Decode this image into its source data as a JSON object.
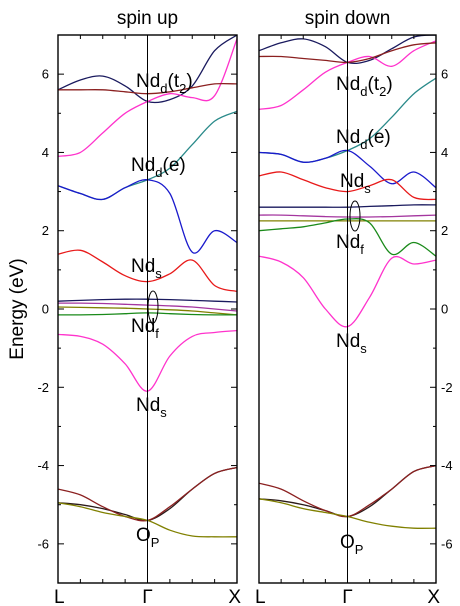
{
  "chart_data": [
    {
      "type": "line",
      "title": "spin up",
      "xlabel": "",
      "ylabel": "Energy (eV)",
      "ylim": [
        -7,
        7
      ],
      "yticks": [
        -6,
        -4,
        -2,
        0,
        2,
        4,
        6
      ],
      "xticks": [
        "L",
        "Γ",
        "X"
      ],
      "x": [
        0,
        0.125,
        0.25,
        0.375,
        0.5,
        0.625,
        0.75,
        0.875,
        1
      ],
      "series": [
        {
          "color": "#1a1a5e",
          "values": [
            5.6,
            5.85,
            5.95,
            5.7,
            5.3,
            5.35,
            5.7,
            6.6,
            7.0
          ]
        },
        {
          "color": "#ff33cc",
          "values": [
            3.9,
            4.0,
            4.5,
            5.0,
            5.3,
            5.5,
            5.4,
            5.45,
            6.9
          ]
        },
        {
          "color": "#8b2020",
          "values": [
            5.6,
            5.6,
            5.6,
            5.55,
            5.5,
            5.55,
            5.65,
            5.75,
            5.75
          ]
        },
        {
          "color": "#2a8a8a",
          "values": [
            3.15,
            2.95,
            2.8,
            3.1,
            3.3,
            3.6,
            4.2,
            4.8,
            5.05
          ]
        },
        {
          "color": "#1a1acc",
          "values": [
            3.15,
            2.95,
            2.8,
            3.1,
            3.3,
            2.95,
            1.45,
            2.0,
            1.7
          ]
        },
        {
          "color": "#e81a1a",
          "values": [
            1.4,
            1.5,
            1.2,
            0.85,
            0.7,
            0.9,
            1.25,
            0.6,
            0.45
          ]
        },
        {
          "color": "#1a1a5e",
          "values": [
            0.2,
            0.22,
            0.24,
            0.25,
            0.25,
            0.24,
            0.22,
            0.2,
            0.18
          ]
        },
        {
          "color": "#a4369f",
          "values": [
            0.15,
            0.15,
            0.14,
            0.12,
            0.1,
            0.08,
            0.05,
            0.0,
            -0.05
          ]
        },
        {
          "color": "#808000",
          "values": [
            0.05,
            0.04,
            0.03,
            0.02,
            0.0,
            -0.02,
            -0.05,
            -0.1,
            -0.15
          ]
        },
        {
          "color": "#1a8a1a",
          "values": [
            -0.15,
            -0.15,
            -0.14,
            -0.12,
            -0.1,
            -0.12,
            -0.14,
            -0.15,
            -0.15
          ]
        },
        {
          "color": "#ff33cc",
          "values": [
            -0.65,
            -0.7,
            -0.9,
            -1.4,
            -2.1,
            -1.2,
            -0.7,
            -0.6,
            -0.55
          ]
        },
        {
          "color": "#2b1a1a",
          "values": [
            -4.95,
            -5.0,
            -5.1,
            -5.25,
            -5.4,
            -5.1,
            -4.6,
            -4.2,
            -4.05
          ]
        },
        {
          "color": "#8b2020",
          "values": [
            -4.6,
            -4.75,
            -5.05,
            -5.3,
            -5.4,
            -5.05,
            -4.6,
            -4.2,
            -4.05
          ]
        },
        {
          "color": "#808000",
          "values": [
            -4.95,
            -5.05,
            -5.2,
            -5.3,
            -5.4,
            -5.65,
            -5.8,
            -5.82,
            -5.82
          ]
        }
      ],
      "annotations": [
        {
          "main": "Nd",
          "sub": "d",
          "after": "(t",
          "sub2": "2",
          "tail": ")"
        },
        {
          "main": "Nd",
          "sub": "d",
          "after": "(e)"
        },
        {
          "main": "Nd",
          "sub": "s"
        },
        {
          "main": "Nd",
          "sub": "f"
        },
        {
          "main": "Nd",
          "sub": "s"
        },
        {
          "main": "O",
          "sub": "P"
        }
      ]
    },
    {
      "type": "line",
      "title": "spin down",
      "xlabel": "",
      "ylabel": "",
      "ylim": [
        -7,
        7
      ],
      "yticks": [
        -6,
        -4,
        -2,
        0,
        2,
        4,
        6
      ],
      "xticks": [
        "L",
        "Γ",
        "X"
      ],
      "x": [
        0,
        0.125,
        0.25,
        0.375,
        0.5,
        0.625,
        0.75,
        0.875,
        1
      ],
      "series": [
        {
          "color": "#1a1a5e",
          "values": [
            6.6,
            6.8,
            6.9,
            6.7,
            6.3,
            6.35,
            6.65,
            6.95,
            7.0
          ]
        },
        {
          "color": "#ff33cc",
          "values": [
            5.1,
            5.2,
            5.6,
            6.05,
            6.3,
            6.45,
            6.2,
            6.6,
            6.85
          ]
        },
        {
          "color": "#8b2020",
          "values": [
            6.45,
            6.45,
            6.4,
            6.35,
            6.3,
            6.4,
            6.6,
            6.75,
            6.8
          ]
        },
        {
          "color": "#2a8a8a",
          "values": [
            4.0,
            3.95,
            3.75,
            3.85,
            4.05,
            4.35,
            4.9,
            5.5,
            5.9
          ]
        },
        {
          "color": "#1a1acc",
          "values": [
            4.0,
            3.95,
            3.75,
            3.85,
            4.05,
            3.65,
            3.2,
            3.5,
            3.1
          ]
        },
        {
          "color": "#e81a1a",
          "values": [
            3.4,
            3.5,
            3.3,
            3.1,
            3.0,
            3.15,
            3.3,
            2.85,
            2.8
          ]
        },
        {
          "color": "#1a1a5e",
          "values": [
            2.6,
            2.6,
            2.6,
            2.6,
            2.6,
            2.62,
            2.64,
            2.66,
            2.66
          ]
        },
        {
          "color": "#a4369f",
          "values": [
            2.4,
            2.4,
            2.38,
            2.36,
            2.35,
            2.35,
            2.36,
            2.38,
            2.4
          ]
        },
        {
          "color": "#808000",
          "values": [
            2.25,
            2.25,
            2.25,
            2.25,
            2.25,
            2.25,
            2.25,
            2.25,
            2.25
          ]
        },
        {
          "color": "#1a8a1a",
          "values": [
            2.0,
            2.05,
            2.1,
            2.2,
            2.3,
            2.2,
            1.4,
            1.7,
            1.35
          ]
        },
        {
          "color": "#ff33cc",
          "values": [
            1.35,
            1.2,
            0.8,
            0.0,
            -0.45,
            0.3,
            1.3,
            1.15,
            1.25
          ]
        },
        {
          "color": "#2b1a1a",
          "values": [
            -4.85,
            -4.9,
            -5.0,
            -5.15,
            -5.3,
            -5.05,
            -4.6,
            -4.15,
            -4.0
          ]
        },
        {
          "color": "#8b2020",
          "values": [
            -4.45,
            -4.6,
            -4.9,
            -5.15,
            -5.3,
            -5.0,
            -4.6,
            -4.15,
            -4.0
          ]
        },
        {
          "color": "#808000",
          "values": [
            -4.85,
            -4.95,
            -5.1,
            -5.2,
            -5.3,
            -5.45,
            -5.55,
            -5.6,
            -5.6
          ]
        }
      ],
      "annotations": [
        {
          "main": "Nd",
          "sub": "d",
          "after": "(t",
          "sub2": "2",
          "tail": ")"
        },
        {
          "main": "Nd",
          "sub": "d",
          "after": "(e)"
        },
        {
          "main": "Nd",
          "sub": "s"
        },
        {
          "main": "Nd",
          "sub": "f"
        },
        {
          "main": "Nd",
          "sub": "s"
        },
        {
          "main": "O",
          "sub": "P"
        }
      ]
    }
  ]
}
